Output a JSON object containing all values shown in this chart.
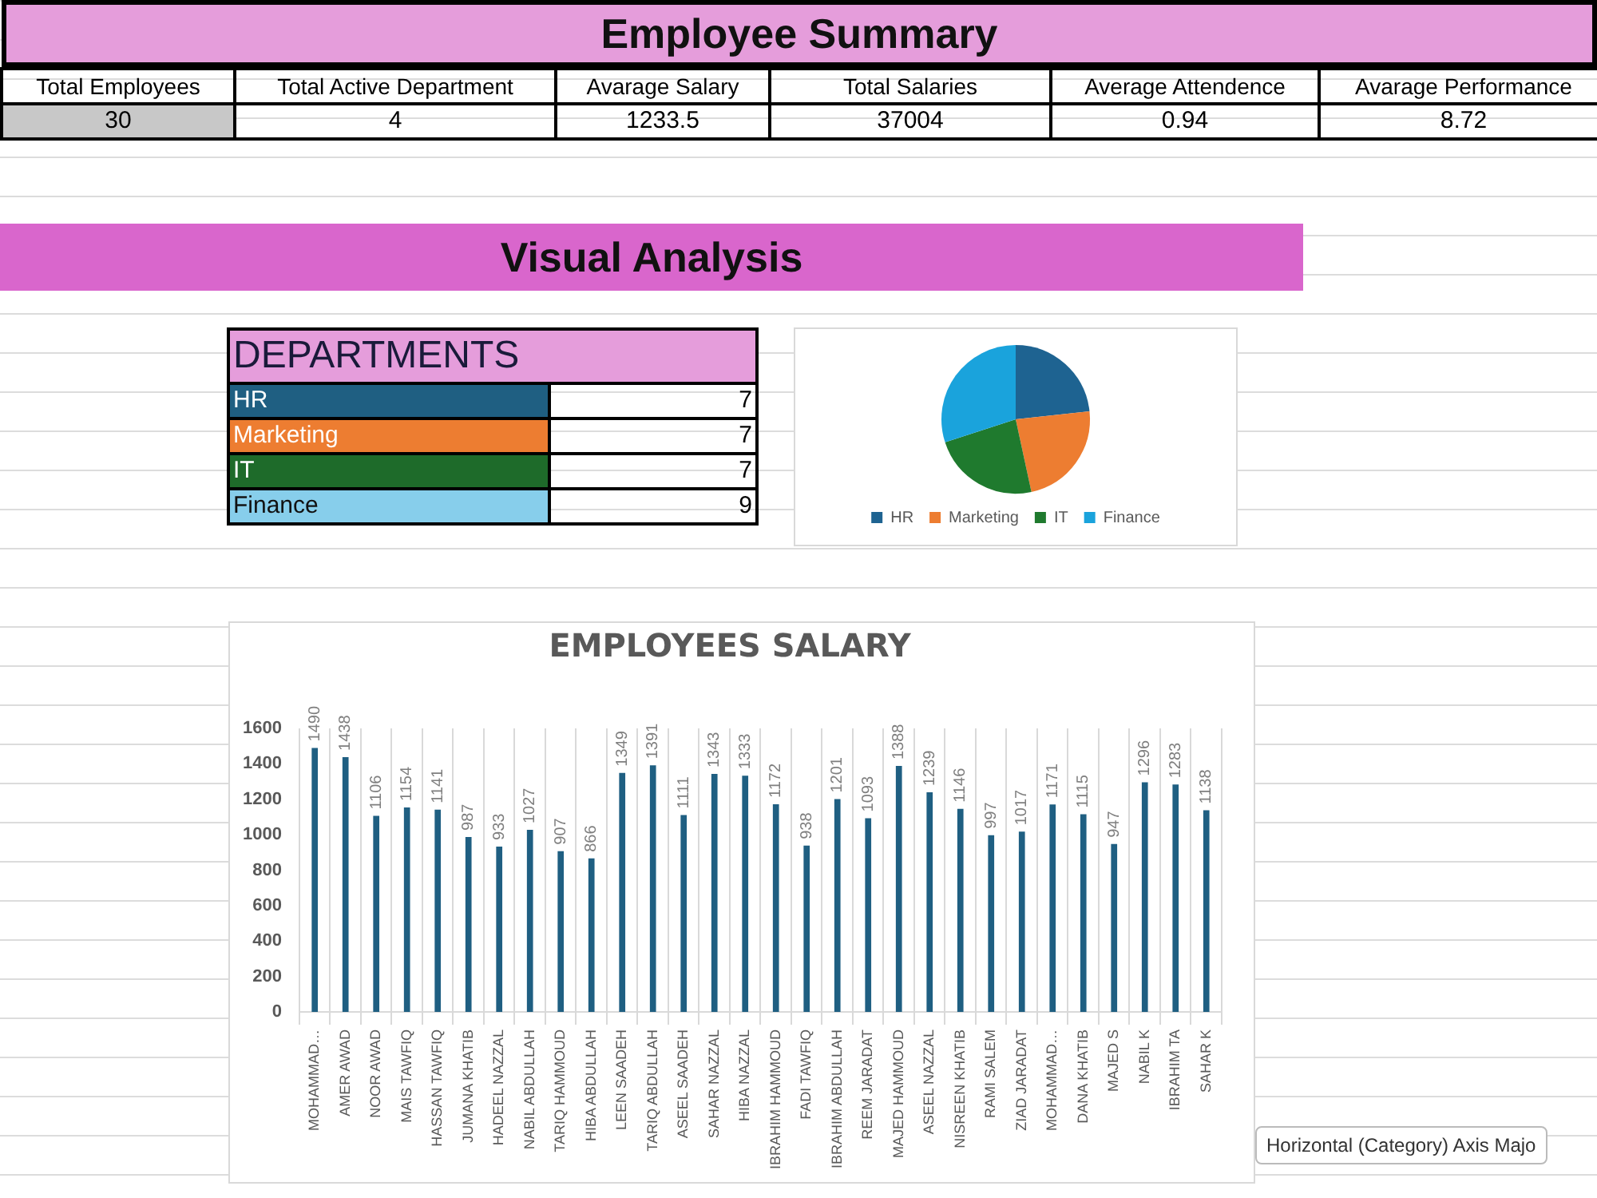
{
  "chart_data": [
    {
      "type": "other",
      "title": "Employee Summary",
      "categories": [
        "Total Employees",
        "Total Active Department",
        "Avarage Salary",
        "Total Salaries",
        "Average Attendence",
        "Avarage Performance"
      ],
      "values": [
        30,
        4,
        1233.5,
        37004,
        0.94,
        8.72
      ],
      "data_labels": true
    },
    {
      "type": "other",
      "title": "Visual Analysis"
    },
    {
      "type": "other",
      "title": "DEPARTMENTS",
      "categories": [
        "HR",
        "Marketing",
        "IT",
        "Finance"
      ],
      "values": [
        7,
        7,
        7,
        9
      ],
      "colors": [
        "#1f5f82",
        "#ed7d31",
        "#1e6b2a",
        "#87ceeb"
      ],
      "data_labels": true
    },
    {
      "type": "pie",
      "categories": [
        "HR",
        "Marketing",
        "IT",
        "Finance"
      ],
      "values": [
        23.3,
        23.3,
        23.4,
        30
      ],
      "colors": [
        "#1e6391",
        "#ed7d31",
        "#1f7a2e",
        "#1aa3dc"
      ],
      "legend": "bottom"
    },
    {
      "type": "bar",
      "title": "EMPLOYEES SALARY",
      "categories": [
        "MOHAMMAD…",
        "AMER AWAD",
        "NOOR AWAD",
        "MAIS TAWFIQ",
        "HASSAN TAWFIQ",
        "JUMANA KHATIB",
        "HADEEL NAZZAL",
        "NABIL ABDULLAH",
        "TARIQ HAMMOUD",
        "HIBA ABDULLAH",
        "LEEN SAADEH",
        "TARIQ ABDULLAH",
        "ASEEL SAADEH",
        "SAHAR NAZZAL",
        "HIBA NAZZAL",
        "IBRAHIM HAMMOUD",
        "FADI TAWFIQ",
        "IBRAHIM ABDULLAH",
        "REEM JARADAT",
        "MAJED HAMMOUD",
        "ASEEL NAZZAL",
        "NISREEN KHATIB",
        "RAMI SALEM",
        "ZIAD JARADAT",
        "MOHAMMAD…",
        "DANA KHATIB",
        "MAJED S",
        "NABIL K",
        "IBRAHIM TA",
        "SAHAR K"
      ],
      "values": [
        1490,
        1438,
        1106,
        1154,
        1141,
        987,
        933,
        1027,
        907,
        866,
        1349,
        1391,
        1111,
        1343,
        1333,
        1172,
        938,
        1201,
        1093,
        1388,
        1239,
        1146,
        997,
        1017,
        1171,
        1115,
        947,
        1296,
        1283,
        1138
      ],
      "color": "#1f5f82",
      "ylim": [
        0,
        1600
      ],
      "yticks": [
        0,
        200,
        400,
        600,
        800,
        1000,
        1200,
        1400,
        1600
      ],
      "grid": "x",
      "data_labels": true,
      "annotations": [
        "Horizontal (Category) Axis Majo"
      ]
    }
  ]
}
